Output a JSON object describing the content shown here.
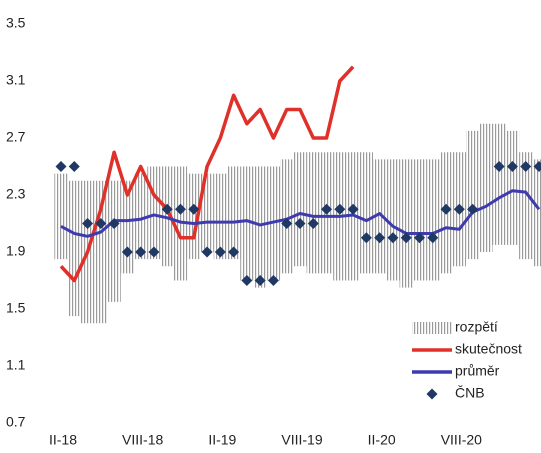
{
  "chart_data": {
    "type": "line",
    "categories": [
      "II-18",
      null,
      null,
      null,
      null,
      null,
      "VIII-18",
      null,
      null,
      null,
      null,
      null,
      "II-19",
      null,
      null,
      null,
      null,
      null,
      "VIII-19",
      null,
      null,
      null,
      null,
      null,
      "II-20",
      null,
      null,
      null,
      null,
      null,
      "VIII-20",
      null,
      null,
      null,
      null,
      null,
      null
    ],
    "ylim": [
      0.7,
      3.5
    ],
    "yticks": [
      0.7,
      1.1,
      1.5,
      1.9,
      2.3,
      2.7,
      3.1,
      3.5
    ],
    "legend": "lower right",
    "series": [
      {
        "name": "rozpětí",
        "style": "band",
        "color": "#9a9a9a",
        "low": [
          1.85,
          1.45,
          1.4,
          1.4,
          1.55,
          1.75,
          1.85,
          1.85,
          1.8,
          1.7,
          1.85,
          1.9,
          1.85,
          1.85,
          1.7,
          1.65,
          1.7,
          1.75,
          1.8,
          1.75,
          1.75,
          1.7,
          1.7,
          1.75,
          1.75,
          1.7,
          1.65,
          1.7,
          1.7,
          1.75,
          1.8,
          1.85,
          1.9,
          1.95,
          1.95,
          1.85,
          1.8
        ],
        "high": [
          2.45,
          2.4,
          2.4,
          2.4,
          2.4,
          2.4,
          2.45,
          2.5,
          2.5,
          2.5,
          2.45,
          2.45,
          2.45,
          2.5,
          2.5,
          2.5,
          2.5,
          2.55,
          2.6,
          2.6,
          2.6,
          2.6,
          2.6,
          2.6,
          2.55,
          2.55,
          2.55,
          2.55,
          2.55,
          2.6,
          2.6,
          2.75,
          2.8,
          2.8,
          2.75,
          2.6,
          2.55
        ]
      },
      {
        "name": "skutečnost",
        "style": "line",
        "color": "#e0302a",
        "values": [
          1.8,
          1.7,
          1.9,
          2.2,
          2.6,
          2.3,
          2.5,
          2.3,
          2.2,
          2.0,
          2.0,
          2.5,
          2.7,
          3.0,
          2.8,
          2.9,
          2.7,
          2.9,
          2.9,
          2.7,
          2.7,
          3.1,
          3.2,
          null,
          null,
          null,
          null,
          null,
          null,
          null,
          null,
          null,
          null,
          null,
          null,
          null,
          null
        ]
      },
      {
        "name": "průměr",
        "style": "line",
        "color": "#3e3ab0",
        "values": [
          2.08,
          2.03,
          2.01,
          2.04,
          2.12,
          2.12,
          2.13,
          2.16,
          2.14,
          2.11,
          2.1,
          2.11,
          2.11,
          2.11,
          2.12,
          2.09,
          2.11,
          2.13,
          2.17,
          2.15,
          2.15,
          2.15,
          2.16,
          2.12,
          2.17,
          2.08,
          2.03,
          2.03,
          2.03,
          2.07,
          2.06,
          2.18,
          2.22,
          2.28,
          2.33,
          2.32,
          2.2
        ]
      },
      {
        "name": "ČNB",
        "style": "marker",
        "color": "#1f3864",
        "values": [
          2.5,
          2.5,
          2.1,
          2.1,
          2.1,
          1.9,
          1.9,
          1.9,
          2.2,
          2.2,
          2.2,
          1.9,
          1.9,
          1.9,
          1.7,
          1.7,
          1.7,
          2.1,
          2.1,
          2.1,
          2.2,
          2.2,
          2.2,
          2.0,
          2.0,
          2.0,
          2.0,
          2.0,
          2.0,
          2.2,
          2.2,
          2.2,
          null,
          2.5,
          2.5,
          2.5,
          2.5
        ]
      }
    ]
  }
}
